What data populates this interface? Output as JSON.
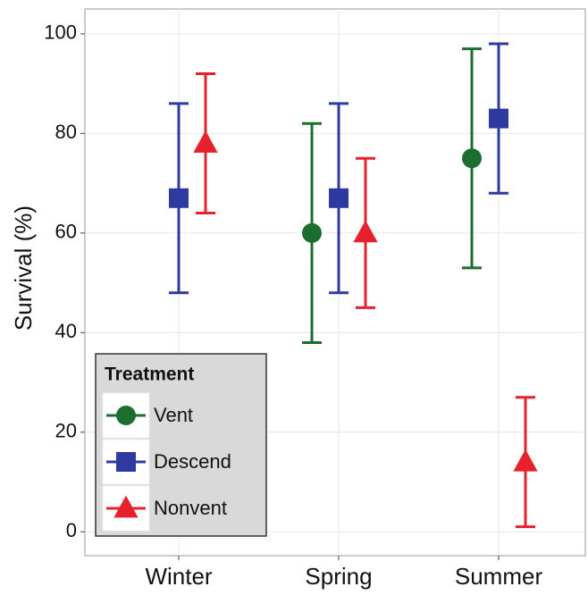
{
  "chart_data": {
    "type": "errorbar",
    "y_label": "Survival (%)",
    "categories": [
      "Winter",
      "Spring",
      "Summer"
    ],
    "series": [
      {
        "name": "Vent",
        "color": "#1b6e2f",
        "marker": "circle",
        "values": [
          null,
          60,
          75
        ],
        "lower": [
          null,
          38,
          53
        ],
        "upper": [
          null,
          82,
          97
        ]
      },
      {
        "name": "Descend",
        "color": "#2e3a9f",
        "marker": "square",
        "values": [
          67,
          67,
          83
        ],
        "lower": [
          48,
          48,
          68
        ],
        "upper": [
          86,
          86,
          98
        ]
      },
      {
        "name": "Nonvent",
        "color": "#e5222b",
        "marker": "triangle",
        "values": [
          78,
          60,
          14
        ],
        "lower": [
          64,
          45,
          1
        ],
        "upper": [
          92,
          75,
          27
        ]
      }
    ],
    "legend_title": "Treatment",
    "ylim": [
      -4.8,
      105
    ],
    "yticks": [
      0,
      20,
      40,
      60,
      80,
      100
    ],
    "grid": true
  }
}
